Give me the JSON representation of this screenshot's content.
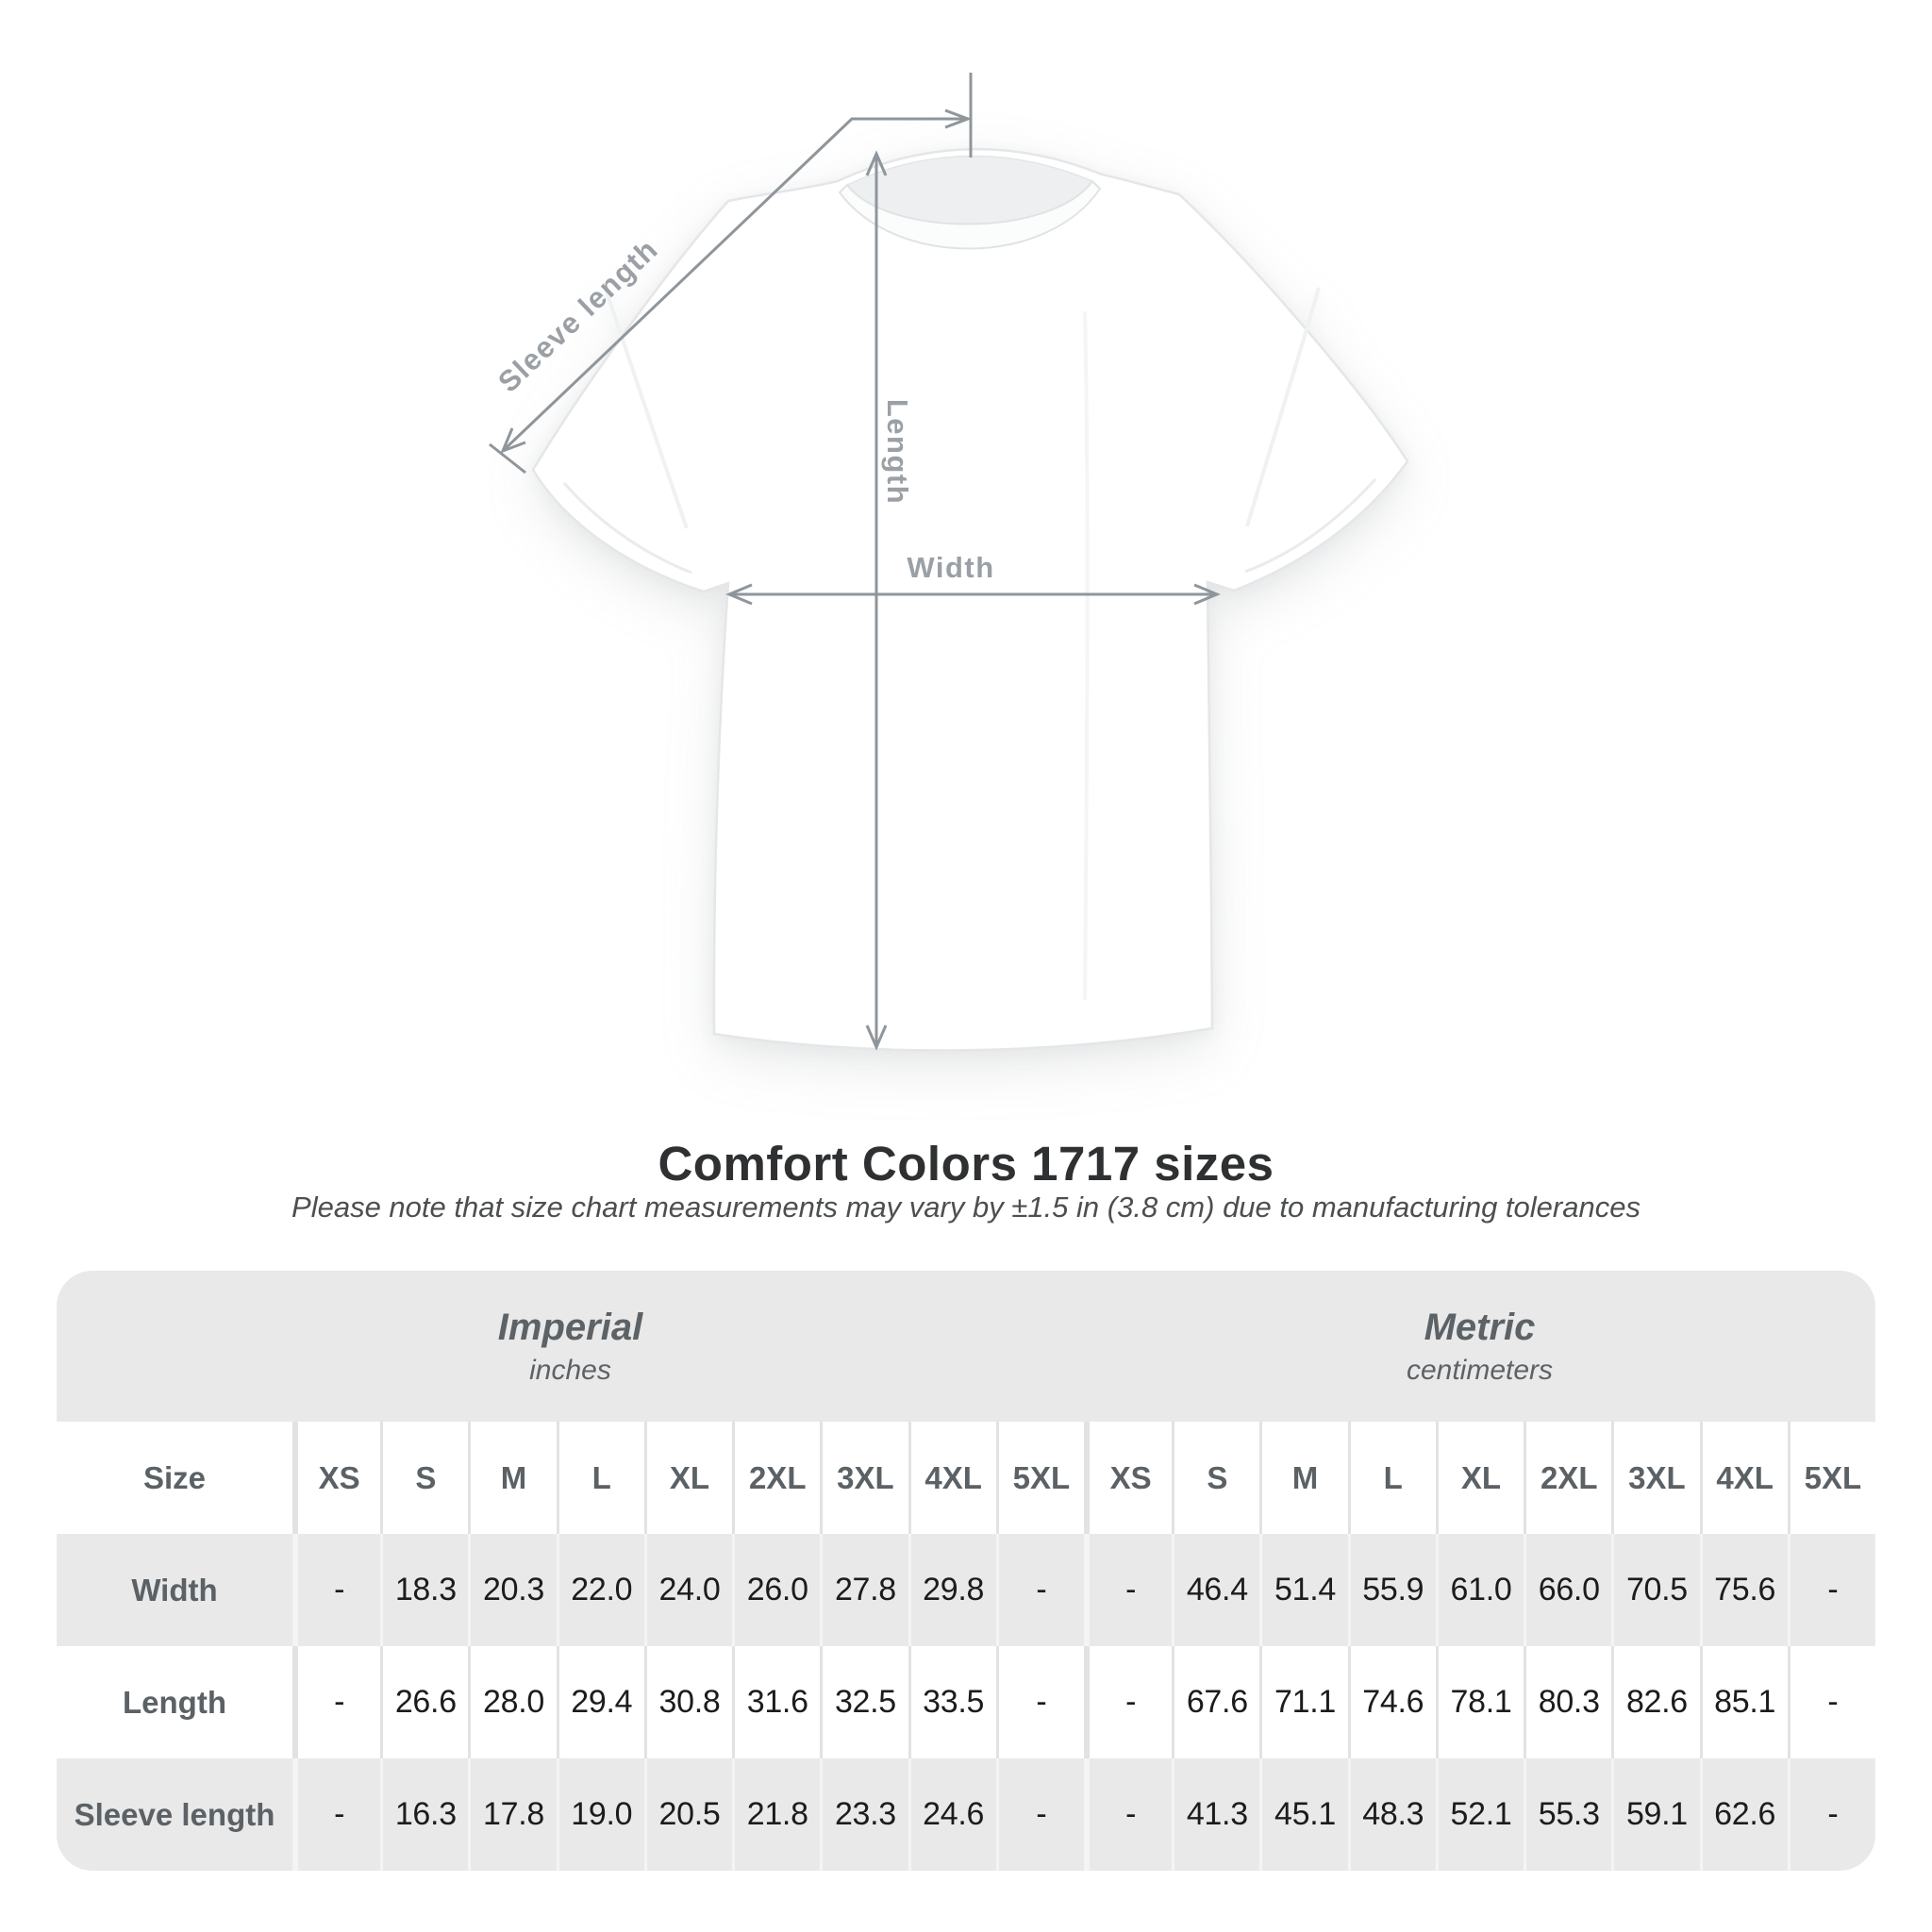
{
  "diagram": {
    "labels": {
      "sleeve_length": "Sleeve length",
      "length": "Length",
      "width": "Width"
    },
    "colors": {
      "line": "#8f969b",
      "label": "#9aa0a5",
      "shirt": "#ffffff"
    }
  },
  "heading": {
    "title": "Comfort Colors 1717 sizes",
    "subtitle": "Please note that size chart measurements may vary by ±1.5 in (3.8 cm) due to manufacturing tolerances"
  },
  "size_table": {
    "size_label": "Size",
    "unit_groups": [
      {
        "name": "Imperial",
        "unit": "inches"
      },
      {
        "name": "Metric",
        "unit": "centimeters"
      }
    ],
    "sizes": [
      "XS",
      "S",
      "M",
      "L",
      "XL",
      "2XL",
      "3XL",
      "4XL",
      "5XL"
    ],
    "rows": [
      {
        "label": "Width",
        "imperial": [
          "-",
          "18.3",
          "20.3",
          "22.0",
          "24.0",
          "26.0",
          "27.8",
          "29.8",
          "-"
        ],
        "metric": [
          "-",
          "46.4",
          "51.4",
          "55.9",
          "61.0",
          "66.0",
          "70.5",
          "75.6",
          "-"
        ]
      },
      {
        "label": "Length",
        "imperial": [
          "-",
          "26.6",
          "28.0",
          "29.4",
          "30.8",
          "31.6",
          "32.5",
          "33.5",
          "-"
        ],
        "metric": [
          "-",
          "67.6",
          "71.1",
          "74.6",
          "78.1",
          "80.3",
          "82.6",
          "85.1",
          "-"
        ]
      },
      {
        "label": "Sleeve length",
        "imperial": [
          "-",
          "16.3",
          "17.8",
          "19.0",
          "20.5",
          "21.8",
          "23.3",
          "24.6",
          "-"
        ],
        "metric": [
          "-",
          "41.3",
          "45.1",
          "48.3",
          "52.1",
          "55.3",
          "59.1",
          "62.6",
          "-"
        ]
      }
    ],
    "colors": {
      "band": "#e9e9e9",
      "alt_row": "#e9e9e9",
      "value_text": "#1c1c1c",
      "label_text": "#5b6165"
    }
  }
}
